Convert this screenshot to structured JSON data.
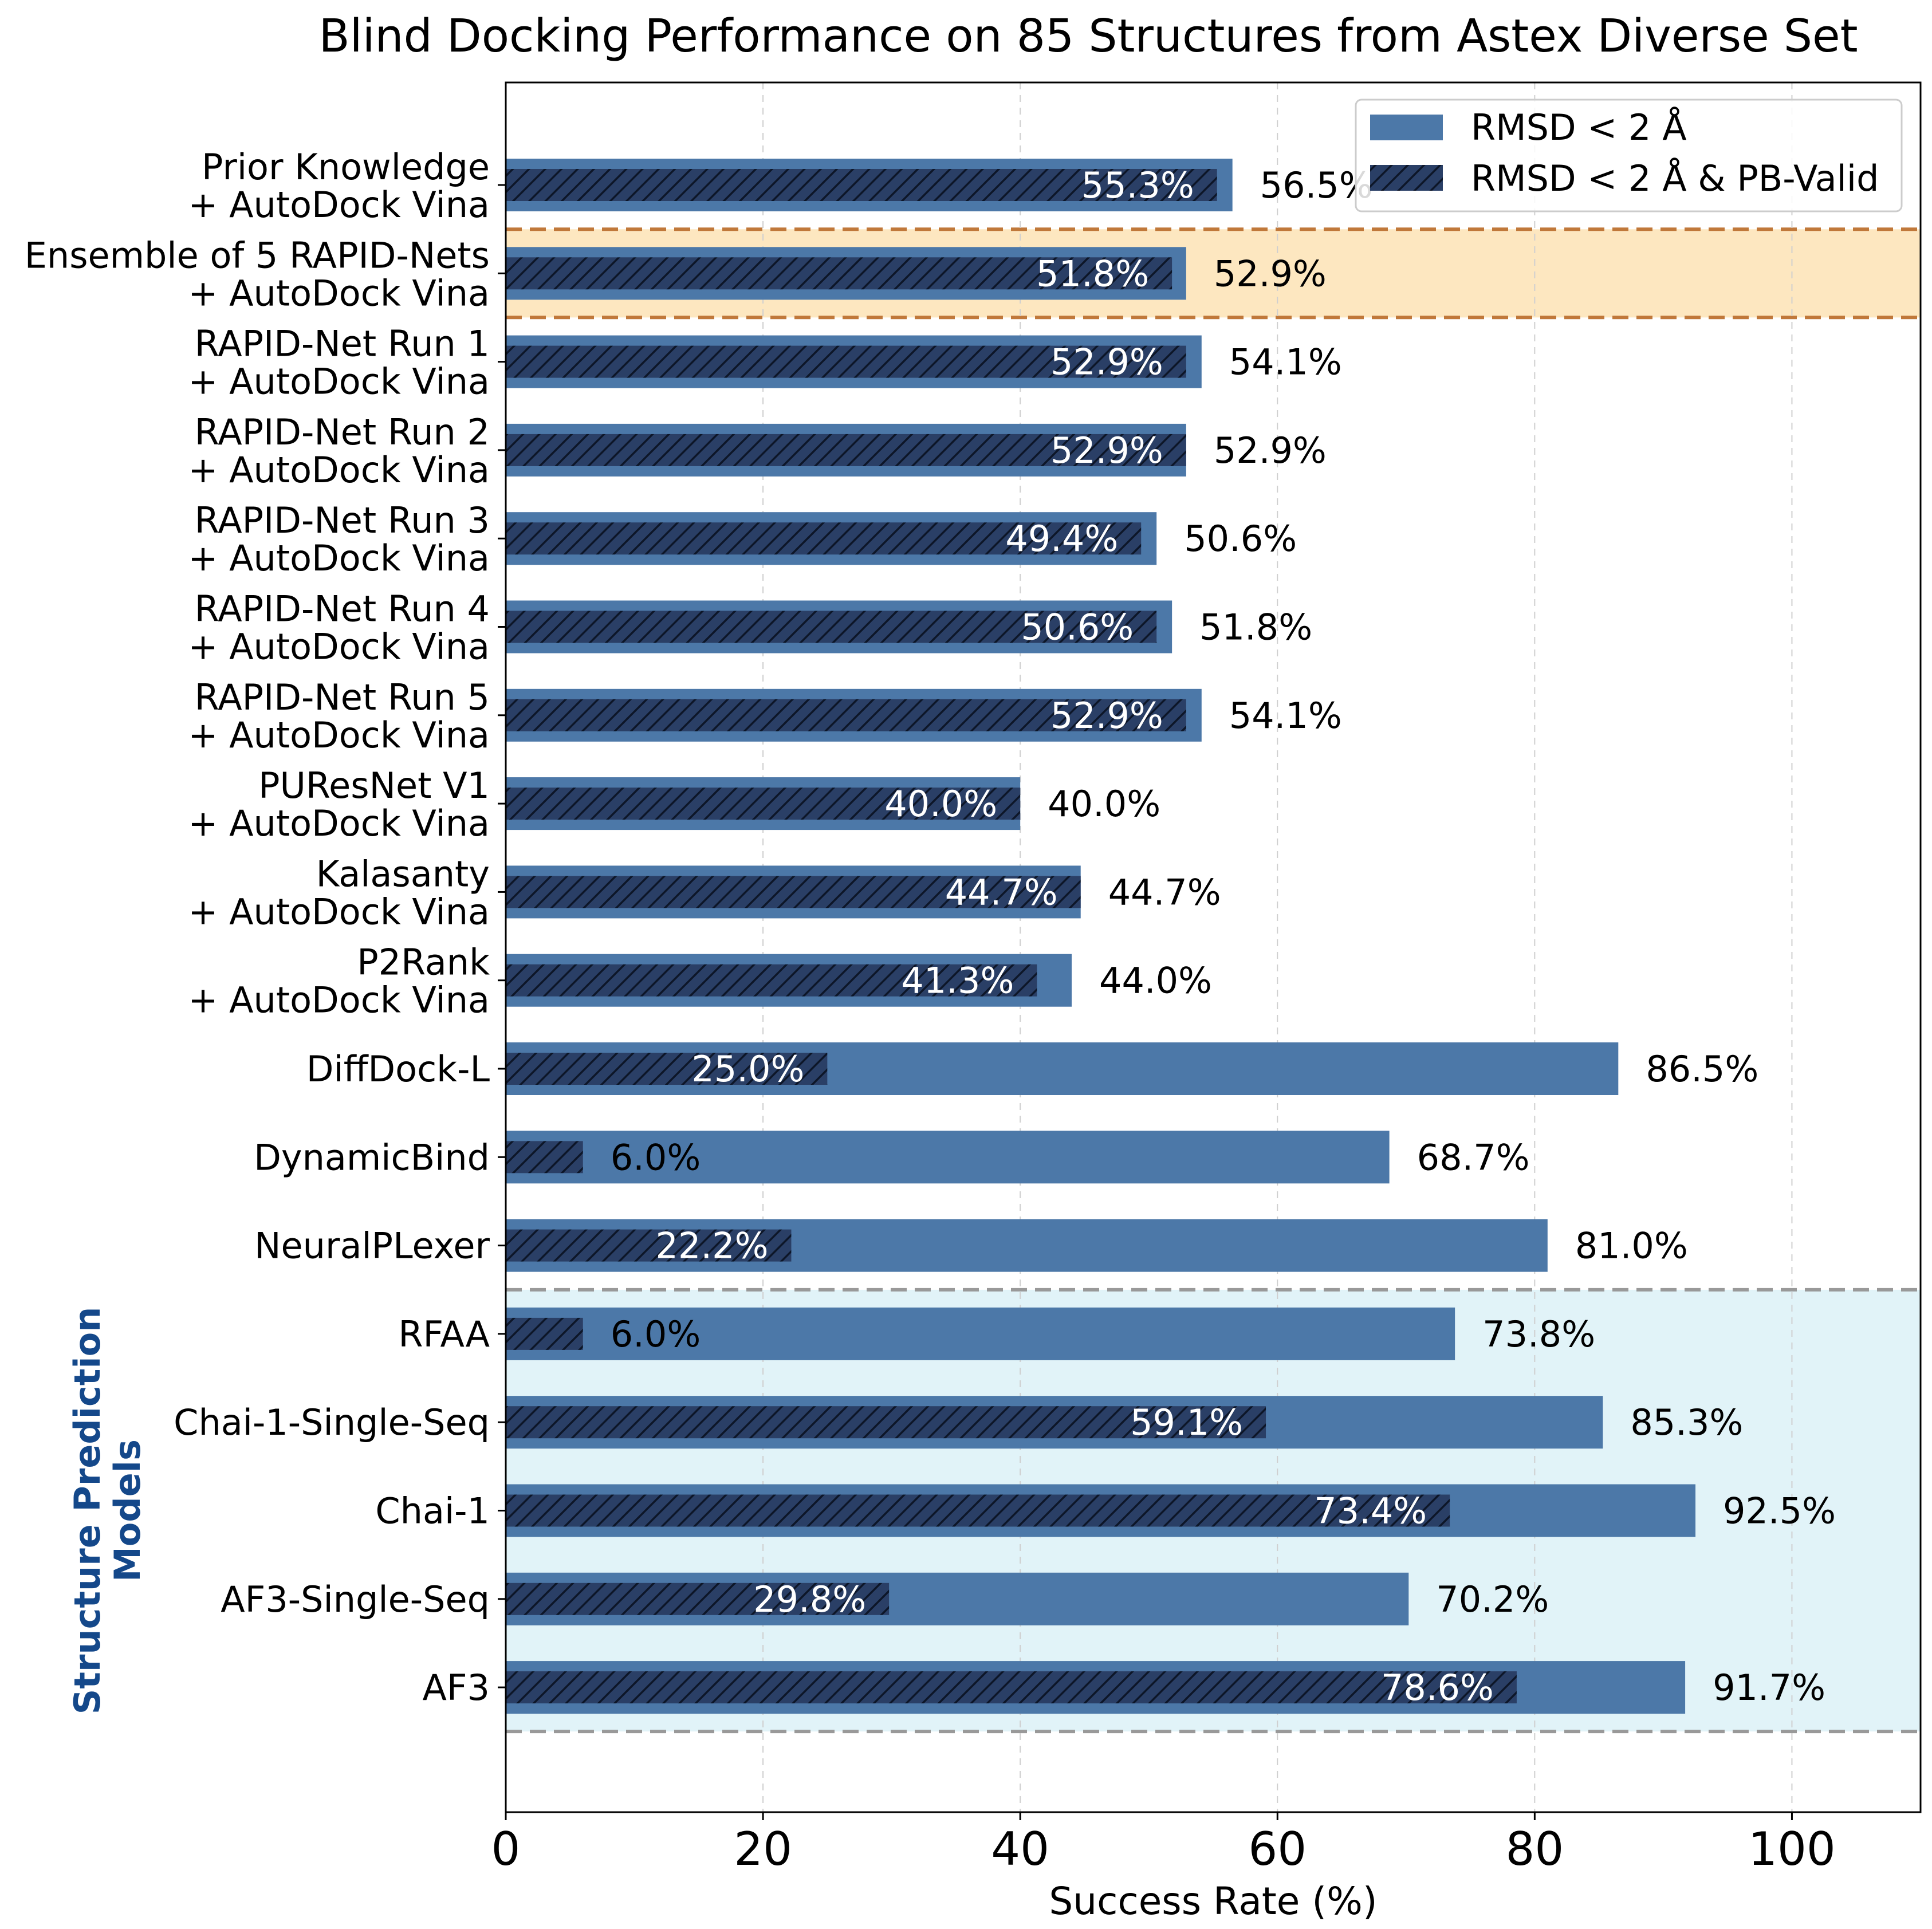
{
  "chart_data": {
    "type": "bar",
    "orientation": "horizontal",
    "title": "Blind Docking Performance on 85 Structures from Astex Diverse Set",
    "xlabel": "Success Rate (%)",
    "ylabel": "",
    "xlim": [
      0,
      110
    ],
    "xticks": [
      "0",
      "20",
      "40",
      "60",
      "80",
      "100"
    ],
    "grid": "vertical dashed",
    "legend_position": "top-right",
    "categories": [
      [
        "Prior Knowledge",
        "+ AutoDock Vina"
      ],
      [
        "Ensemble of 5 RAPID-Nets",
        "+ AutoDock Vina"
      ],
      [
        "RAPID-Net Run 1",
        "+ AutoDock Vina"
      ],
      [
        "RAPID-Net Run 2",
        "+ AutoDock Vina"
      ],
      [
        "RAPID-Net Run 3",
        "+ AutoDock Vina"
      ],
      [
        "RAPID-Net Run 4",
        "+ AutoDock Vina"
      ],
      [
        "RAPID-Net Run 5",
        "+ AutoDock Vina"
      ],
      [
        "PUResNet V1",
        "+ AutoDock Vina"
      ],
      [
        "Kalasanty",
        "+ AutoDock Vina"
      ],
      [
        "P2Rank",
        "+ AutoDock Vina"
      ],
      [
        "DiffDock-L"
      ],
      [
        "DynamicBind"
      ],
      [
        "NeuralPLexer"
      ],
      [
        "RFAA"
      ],
      [
        "Chai-1-Single-Seq"
      ],
      [
        "Chai-1"
      ],
      [
        "AF3-Single-Seq"
      ],
      [
        "AF3"
      ]
    ],
    "series": [
      {
        "name": "RMSD < 2 Å",
        "color": "#4c78a8",
        "values": [
          56.5,
          52.9,
          54.1,
          52.9,
          50.6,
          51.8,
          54.1,
          40.0,
          44.7,
          44.0,
          86.5,
          68.7,
          81.0,
          73.8,
          85.3,
          92.5,
          70.2,
          91.7
        ],
        "labels": [
          "56.5%",
          "52.9%",
          "54.1%",
          "52.9%",
          "50.6%",
          "51.8%",
          "54.1%",
          "40.0%",
          "44.7%",
          "44.0%",
          "86.5%",
          "68.7%",
          "81.0%",
          "73.8%",
          "85.3%",
          "92.5%",
          "70.2%",
          "91.7%"
        ]
      },
      {
        "name": "RMSD < 2 Å & PB-Valid",
        "color": "#2a3f66",
        "pattern": "hatched",
        "values": [
          55.3,
          51.8,
          52.9,
          52.9,
          49.4,
          50.6,
          52.9,
          40.0,
          44.7,
          41.3,
          25.0,
          6.0,
          22.2,
          6.0,
          59.1,
          73.4,
          29.8,
          78.6
        ],
        "labels": [
          "55.3%",
          "51.8%",
          "52.9%",
          "52.9%",
          "49.4%",
          "50.6%",
          "52.9%",
          "40.0%",
          "44.7%",
          "41.3%",
          "25.0%",
          "6.0%",
          "22.2%",
          "6.0%",
          "59.1%",
          "73.4%",
          "29.8%",
          "78.6%"
        ]
      }
    ],
    "highlight": {
      "category_index": 1,
      "fill": "#fde7c0",
      "border": "#c0783a"
    },
    "group_region": {
      "label": [
        "Structure Prediction",
        "Models"
      ],
      "start_index": 13,
      "end_index": 17,
      "fill": "#e1f3f8",
      "border": "#999999",
      "label_color": "#14488a"
    }
  }
}
